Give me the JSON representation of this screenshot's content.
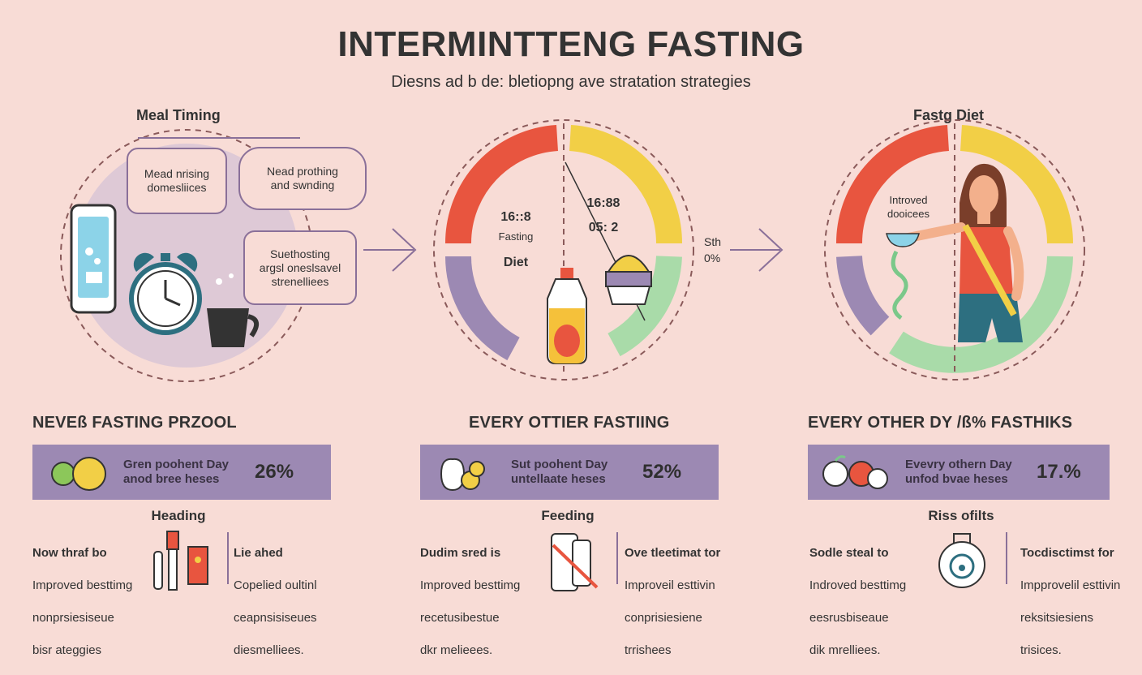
{
  "header": {
    "title": "INTERMINTTENG FASTING",
    "subtitle": "Diesns ad b de: bletiopng ave stratation strategies"
  },
  "panels": {
    "meal_timing": {
      "label": "Meal Timing",
      "bubbles": [
        "Mead nrising\ndomesliices",
        "Nead prothing\nand swnding",
        "Suethosting\nargsl oneslsavel\nstrenelliees"
      ]
    },
    "diet_ring": {
      "left_text": [
        "16::8",
        "Fasting",
        "Diet"
      ],
      "right_text": [
        "16:88",
        "05: 2"
      ],
      "side_text": [
        "Sth",
        "0%"
      ]
    },
    "fasting_diet": {
      "label": "Fastg Diet",
      "ring_text": [
        "Introved",
        "dooicees"
      ]
    }
  },
  "sections": [
    {
      "heading": "NEVEß FASTING PRZOOL",
      "banner_text": "Gren poohent Day\nanod bree heses",
      "banner_pct": "26%",
      "sub_heading": "Heading",
      "left_note": [
        "Now thraf bo",
        "Improved besttimg",
        "nonprsiesiseue",
        "bisr ateggies"
      ],
      "right_note": [
        "Lie ahed",
        "Copelied oultinl",
        "ceapnsisiseues",
        "diesmelliees."
      ]
    },
    {
      "heading": "EVERY OTTIER FASTIING",
      "banner_text": "Sut poohent Day\nuntellaate heses",
      "banner_pct": "52%",
      "sub_heading": "Feeding",
      "left_note": [
        "Dudim sred is",
        "Improved besttimg",
        "recetusibestue",
        "dkr melieees."
      ],
      "right_note": [
        "Ove tleetimat tor",
        "Improveil esttivin",
        "conprisiesiene",
        "trrishees"
      ]
    },
    {
      "heading": "EVERY OTHER DY /ß% FASTHIKS",
      "banner_text": "Evevry othern Day\nunfod bvae heses",
      "banner_pct": "17.%",
      "sub_heading": "Riss ofilts",
      "left_note": [
        "Sodle steal to",
        "Indroved besttimg",
        "eesrusbiseaue",
        "dik mrelliees."
      ],
      "right_note": [
        "Tocdisctimst for",
        "Impprovelil esttivin",
        "reksitsiesiens",
        "trisices."
      ]
    }
  ],
  "colors": {
    "background": "#f8dcd6",
    "red": "#e8553f",
    "yellow": "#f2cf46",
    "purple": "#9c89b3",
    "green": "#a9dba9",
    "banner": "#9c89b3"
  }
}
